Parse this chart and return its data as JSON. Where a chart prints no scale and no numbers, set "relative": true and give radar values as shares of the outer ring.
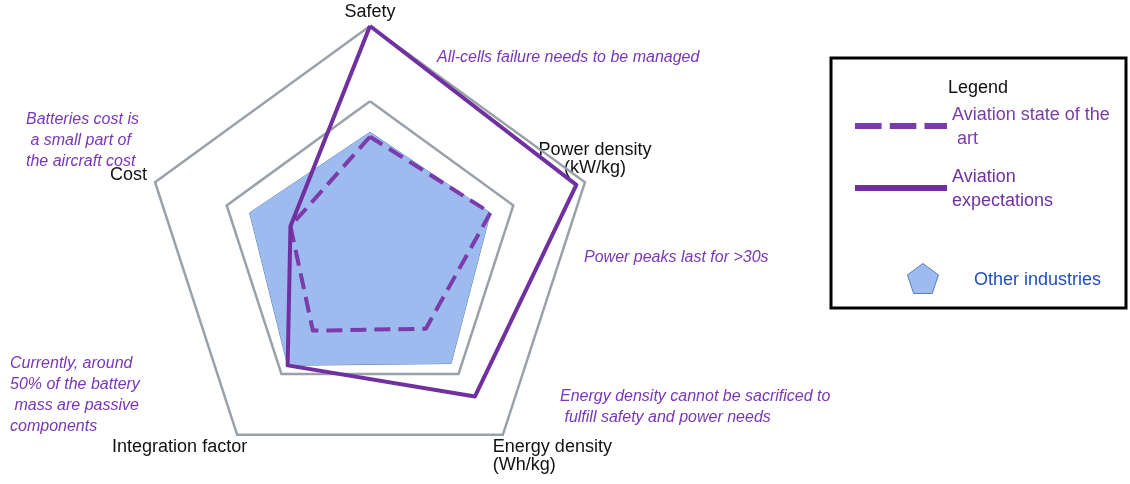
{
  "chart_data": {
    "type": "radar",
    "relative": true,
    "categories": [
      "Safety",
      "Power density (kW/kg)",
      "Energy density (Wh/kg)",
      "Integration factor",
      "Cost"
    ],
    "series": [
      {
        "name": "Other industries",
        "color": "#9dbbef",
        "type": "area",
        "values": [
          0.53,
          0.56,
          0.61,
          0.62,
          0.56
        ]
      },
      {
        "name": "Aviation state of the art",
        "color": "#7b3bab",
        "line_style": "dashed",
        "values": [
          0.51,
          0.56,
          0.42,
          0.43,
          0.37
        ]
      },
      {
        "name": "Aviation expectations",
        "color": "#7030a0",
        "line_style": "solid",
        "values": [
          1.0,
          0.96,
          0.79,
          0.62,
          0.37
        ]
      }
    ],
    "legend": "right",
    "legend_title": "Legend",
    "marker": "none",
    "grid": true,
    "annotations": [
      "All-cells failure needs to be managed",
      "Batteries cost is a small part of the aircraft cost",
      "Power peaks last for >30s",
      "Energy density cannot be sacrificed to fulfill safety and power needs",
      "Currently, around 50% of the battery mass are passive components"
    ]
  }
}
